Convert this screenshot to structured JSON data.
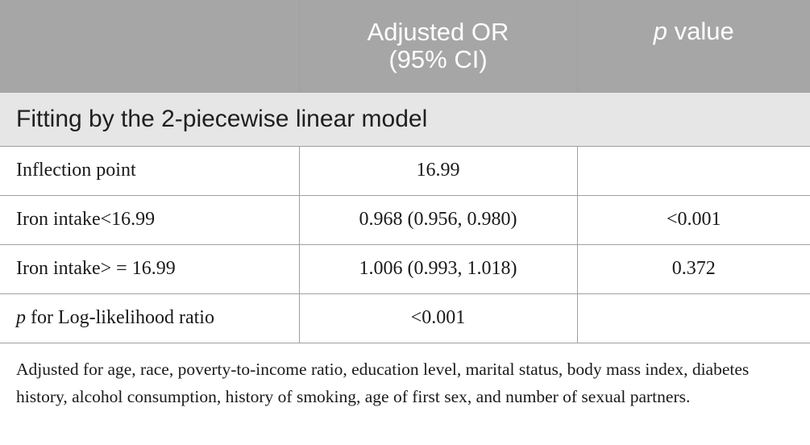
{
  "table": {
    "header": {
      "col1": "",
      "col2_line1": "Adjusted OR",
      "col2_line2": "(95% CI)",
      "col3_italic": "p",
      "col3_rest": " value"
    },
    "section_title": "Fitting by the 2-piecewise linear model",
    "rows": [
      {
        "label_italic": "",
        "label": "Inflection point",
        "or": "16.99",
        "p": ""
      },
      {
        "label_italic": "",
        "label": "Iron intake<16.99",
        "or": "0.968 (0.956, 0.980)",
        "p": "<0.001"
      },
      {
        "label_italic": "",
        "label": "Iron intake> = 16.99",
        "or": "1.006 (0.993, 1.018)",
        "p": "0.372"
      },
      {
        "label_italic": "p",
        "label": " for Log-likelihood ratio",
        "or": "<0.001",
        "p": ""
      }
    ]
  },
  "footnote": "Adjusted for age, race, poverty-to-income ratio, education level, marital status, body mass index, diabetes history, alcohol consumption, history of smoking, age of first sex, and number of sexual partners."
}
